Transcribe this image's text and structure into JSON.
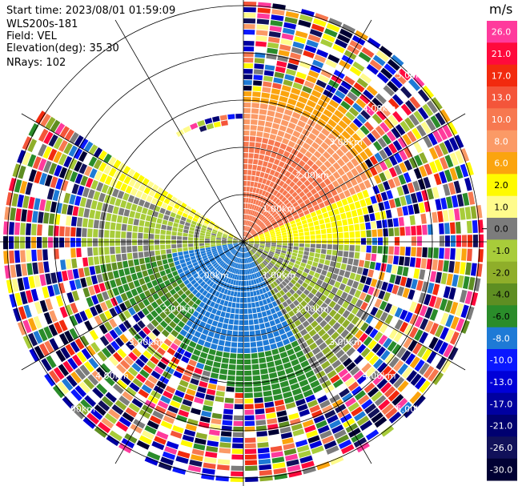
{
  "info": {
    "start_time": "Start time: 2023/08/01 01:59:09",
    "instrument": "WLS200s-181",
    "field": "Field: VEL",
    "elevation": "Elevation(deg): 35.30",
    "nrays": "NRays: 102"
  },
  "ppi": {
    "field_name": "VEL",
    "units": "m/s",
    "nrays": 102,
    "range_rings_km": [
      1,
      2,
      3,
      4,
      5
    ],
    "range_labels": [
      "1.00km",
      "2.00km",
      "3.00km",
      "4.00km",
      "5.00km"
    ]
  },
  "colorbar": {
    "title": "m/s",
    "levels": [
      {
        "label": "26.0",
        "color": "#ff3a9c"
      },
      {
        "label": "21.0",
        "color": "#ff0a3c"
      },
      {
        "label": "17.0",
        "color": "#f22a0e"
      },
      {
        "label": "13.0",
        "color": "#f4553a"
      },
      {
        "label": "10.0",
        "color": "#f77850"
      },
      {
        "label": "8.0",
        "color": "#fb9a66"
      },
      {
        "label": "6.0",
        "color": "#fba40e"
      },
      {
        "label": "2.0",
        "color": "#fffa00"
      },
      {
        "label": "1.0",
        "color": "#fffb8c"
      },
      {
        "label": "0.0",
        "color": "#7c7c7c"
      },
      {
        "label": "-1.0",
        "color": "#a8cc3a"
      },
      {
        "label": "-2.0",
        "color": "#8fae2a"
      },
      {
        "label": "-4.0",
        "color": "#5e8e22"
      },
      {
        "label": "-6.0",
        "color": "#2a8c2a"
      },
      {
        "label": "-8.0",
        "color": "#1e7ad6"
      },
      {
        "label": "-10.0",
        "color": "#0a18ff"
      },
      {
        "label": "-13.0",
        "color": "#0000d8"
      },
      {
        "label": "-17.0",
        "color": "#0000a0"
      },
      {
        "label": "-21.0",
        "color": "#000070"
      },
      {
        "label": "-26.0",
        "color": "#11115a"
      },
      {
        "label": "-30.0",
        "color": "#000033"
      }
    ]
  }
}
